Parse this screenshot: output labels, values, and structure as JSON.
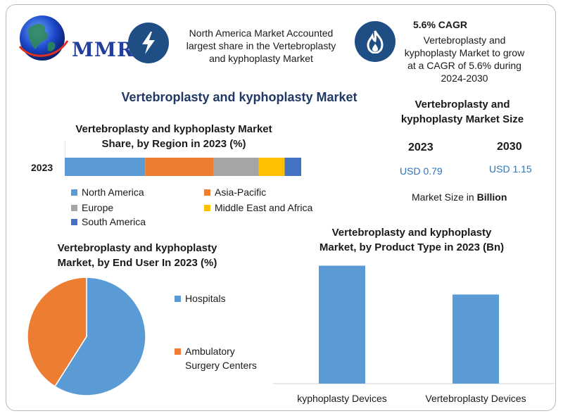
{
  "brand": {
    "logo_text": "MMR"
  },
  "header": {
    "north_america_text": [
      "North America Market Accounted",
      "largest share in the Vertebroplasty",
      "and kyphoplasty Market"
    ],
    "cagr_title": "5.6% CAGR",
    "cagr_text": [
      "Vertebroplasty and",
      "kyphoplasty Market to grow",
      "at a CAGR of 5.6% during",
      "2024-2030"
    ],
    "icons": [
      "lightning-icon",
      "flame-icon"
    ]
  },
  "main_title": "Vertebroplasty and kyphoplasty Market",
  "market_size": {
    "title": [
      "Vertebroplasty and",
      "kyphoplasty Market Size"
    ],
    "years": [
      "2023",
      "2030"
    ],
    "values": [
      "USD 0.79",
      "USD 1.15"
    ],
    "note_prefix": "Market Size in ",
    "note_bold": "Billion"
  },
  "colors": {
    "blue": "#5b9bd5",
    "orange": "#ed7d31",
    "gray": "#a5a5a5",
    "yellow": "#ffc000",
    "darkblue": "#4472c4",
    "icon_bg": "#1f4e84",
    "title_navy": "#1f3864",
    "value_blue": "#2e75b6"
  },
  "chart_data": [
    {
      "type": "bar",
      "orientation": "horizontal-stacked-100",
      "title": [
        "Vertebroplasty and kyphoplasty Market",
        "Share, by Region in 2023 (%)"
      ],
      "categories": [
        "2023"
      ],
      "series": [
        {
          "name": "North America",
          "values": [
            34
          ],
          "color": "#5b9bd5"
        },
        {
          "name": "Asia-Pacific",
          "values": [
            29
          ],
          "color": "#ed7d31"
        },
        {
          "name": "Europe",
          "values": [
            19
          ],
          "color": "#a5a5a5"
        },
        {
          "name": "Middle East and Africa",
          "values": [
            11
          ],
          "color": "#ffc000"
        },
        {
          "name": "South America",
          "values": [
            7
          ],
          "color": "#4472c4"
        }
      ],
      "legend": "bottom"
    },
    {
      "type": "pie",
      "title": [
        "Vertebroplasty and kyphoplasty",
        "Market, by End User In 2023 (%)"
      ],
      "labels": [
        "Hospitals",
        "Ambulatory Surgery Centers"
      ],
      "legend_lines": [
        [
          "Hospitals"
        ],
        [
          "Ambulatory",
          "Surgery Centers"
        ]
      ],
      "values": [
        59,
        41
      ],
      "colors": [
        "#5b9bd5",
        "#ed7d31"
      ],
      "legend": "right"
    },
    {
      "type": "bar",
      "title": [
        "Vertebroplasty and kyphoplasty",
        "Market, by Product Type in 2023 (Bn)"
      ],
      "categories": [
        "kyphoplasty Devices",
        "Vertebroplasty Devices"
      ],
      "values": [
        0.45,
        0.34
      ],
      "color": "#5b9bd5",
      "ylim": [
        0,
        0.47
      ],
      "grid": false
    }
  ]
}
